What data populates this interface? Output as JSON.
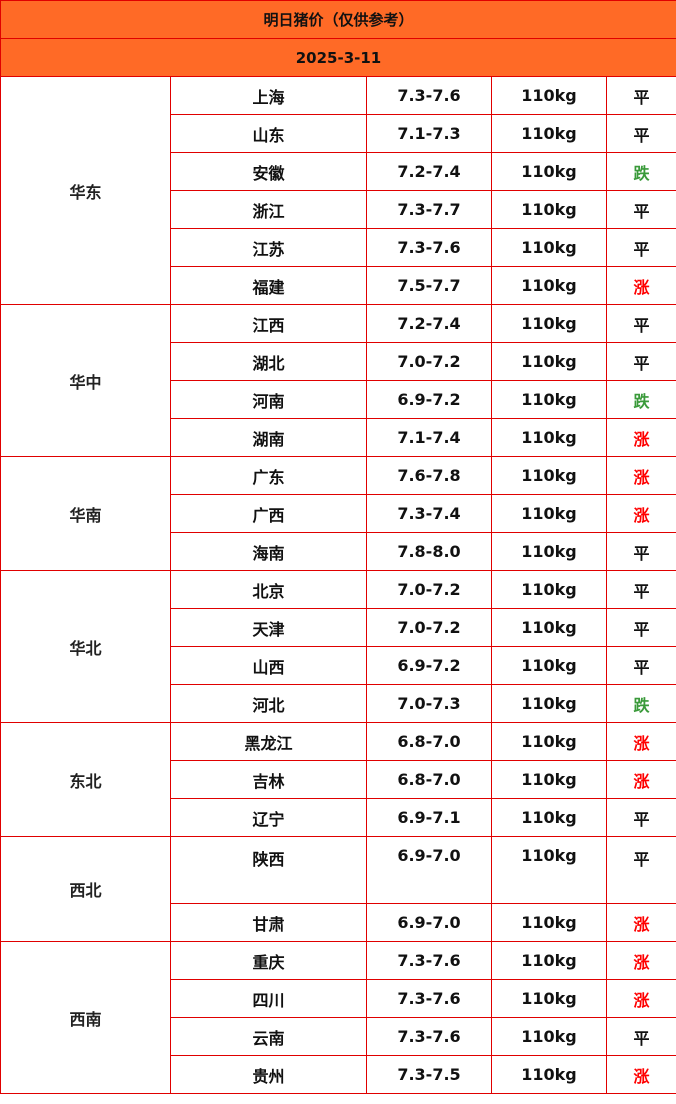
{
  "header": {
    "title": "明日猪价（仅供参考）",
    "date": "2025-3-11"
  },
  "colors": {
    "header_bg": "#ff6a26",
    "border": "#e00000",
    "up": "#ff0000",
    "down": "#3a9a3a",
    "flat": "#111111"
  },
  "regions": [
    {
      "name": "华东",
      "rows": [
        {
          "province": "上海",
          "price": "7.3-7.6",
          "weight": "110kg",
          "trend": "平"
        },
        {
          "province": "山东",
          "price": "7.1-7.3",
          "weight": "110kg",
          "trend": "平"
        },
        {
          "province": "安徽",
          "price": "7.2-7.4",
          "weight": "110kg",
          "trend": "跌"
        },
        {
          "province": "浙江",
          "price": "7.3-7.7",
          "weight": "110kg",
          "trend": "平"
        },
        {
          "province": "江苏",
          "price": "7.3-7.6",
          "weight": "110kg",
          "trend": "平"
        },
        {
          "province": "福建",
          "price": "7.5-7.7",
          "weight": "110kg",
          "trend": "涨"
        }
      ]
    },
    {
      "name": "华中",
      "rows": [
        {
          "province": "江西",
          "price": "7.2-7.4",
          "weight": "110kg",
          "trend": "平"
        },
        {
          "province": "湖北",
          "price": "7.0-7.2",
          "weight": "110kg",
          "trend": "平"
        },
        {
          "province": "河南",
          "price": "6.9-7.2",
          "weight": "110kg",
          "trend": "跌"
        },
        {
          "province": "湖南",
          "price": "7.1-7.4",
          "weight": "110kg",
          "trend": "涨"
        }
      ]
    },
    {
      "name": "华南",
      "rows": [
        {
          "province": "广东",
          "price": "7.6-7.8",
          "weight": "110kg",
          "trend": "涨"
        },
        {
          "province": "广西",
          "price": "7.3-7.4",
          "weight": "110kg",
          "trend": "涨"
        },
        {
          "province": "海南",
          "price": "7.8-8.0",
          "weight": "110kg",
          "trend": "平"
        }
      ]
    },
    {
      "name": "华北",
      "rows": [
        {
          "province": "北京",
          "price": "7.0-7.2",
          "weight": "110kg",
          "trend": "平"
        },
        {
          "province": "天津",
          "price": "7.0-7.2",
          "weight": "110kg",
          "trend": "平"
        },
        {
          "province": "山西",
          "price": "6.9-7.2",
          "weight": "110kg",
          "trend": "平"
        },
        {
          "province": "河北",
          "price": "7.0-7.3",
          "weight": "110kg",
          "trend": "跌"
        }
      ]
    },
    {
      "name": "东北",
      "rows": [
        {
          "province": "黑龙江",
          "price": "6.8-7.0",
          "weight": "110kg",
          "trend": "涨"
        },
        {
          "province": "吉林",
          "price": "6.8-7.0",
          "weight": "110kg",
          "trend": "涨"
        },
        {
          "province": "辽宁",
          "price": "6.9-7.1",
          "weight": "110kg",
          "trend": "平"
        }
      ]
    },
    {
      "name": "西北",
      "rows": [
        {
          "province": "陕西",
          "price": "6.9-7.0",
          "weight": "110kg",
          "trend": "平"
        },
        {
          "province": "甘肃",
          "price": "6.9-7.0",
          "weight": "110kg",
          "trend": "涨"
        }
      ]
    },
    {
      "name": "西南",
      "rows": [
        {
          "province": "重庆",
          "price": "7.3-7.6",
          "weight": "110kg",
          "trend": "涨"
        },
        {
          "province": "四川",
          "price": "7.3-7.6",
          "weight": "110kg",
          "trend": "涨"
        },
        {
          "province": "云南",
          "price": "7.3-7.6",
          "weight": "110kg",
          "trend": "平"
        },
        {
          "province": "贵州",
          "price": "7.3-7.5",
          "weight": "110kg",
          "trend": "涨"
        }
      ]
    }
  ]
}
